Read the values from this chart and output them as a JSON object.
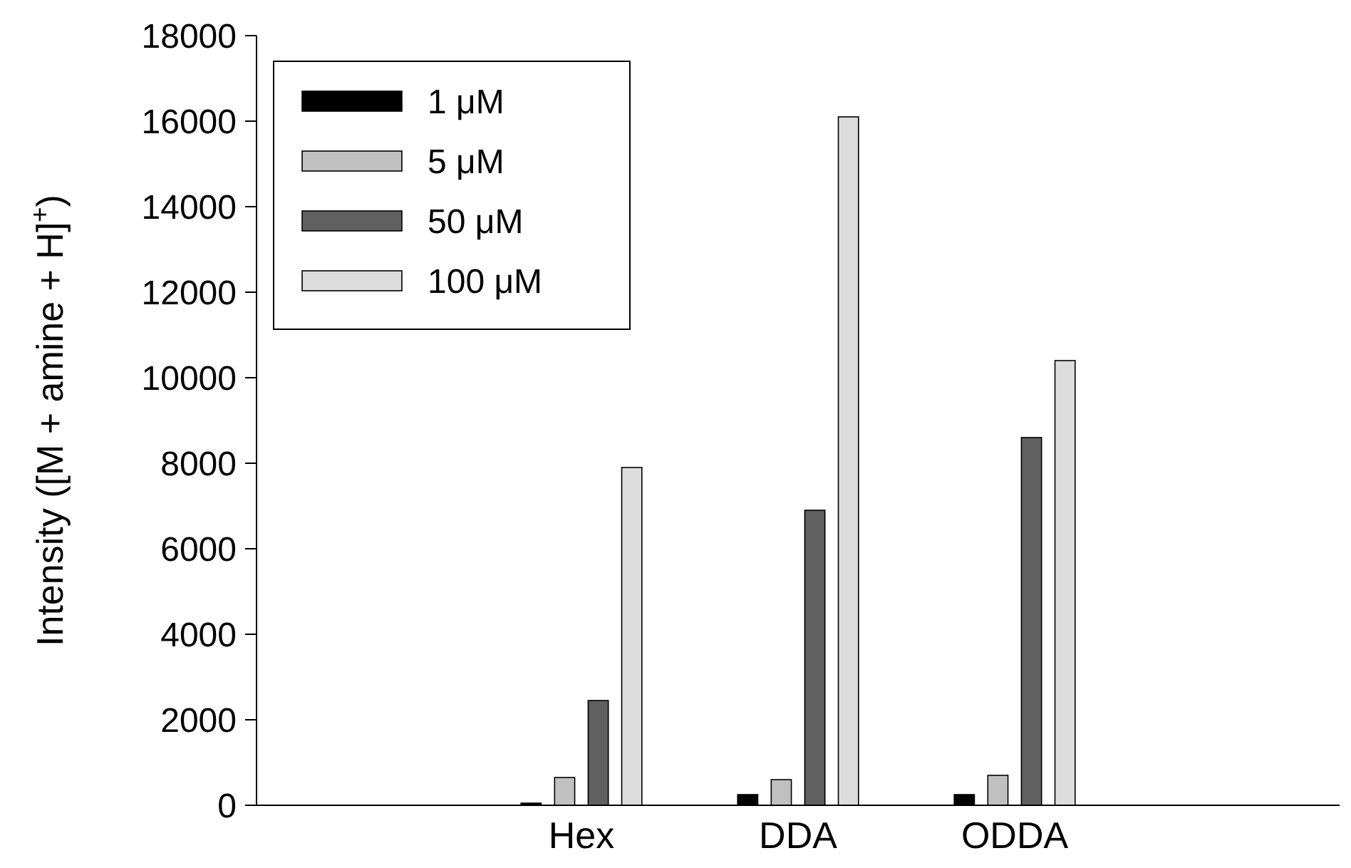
{
  "chart_data": {
    "type": "bar",
    "categories": [
      null,
      "Hex",
      "DDA",
      "ODDA",
      null
    ],
    "ylabel": "Intensity ([M + amine + H]$^{+}$)",
    "ylim": [
      0,
      18000
    ],
    "yticks": [
      0,
      2000,
      4000,
      6000,
      8000,
      10000,
      12000,
      14000,
      16000,
      18000
    ],
    "grid": false,
    "legend": "top left",
    "series": [
      {
        "name": "1 μM",
        "color": "#000000",
        "values": [
          null,
          50,
          250,
          250,
          null
        ]
      },
      {
        "name": "5 μM",
        "color": "#c0c0c0",
        "values": [
          null,
          650,
          600,
          700,
          null
        ]
      },
      {
        "name": "50 μM",
        "color": "#606060",
        "values": [
          null,
          2450,
          6900,
          8600,
          null
        ]
      },
      {
        "name": "100 μM",
        "color": "#dcdcdc",
        "values": [
          null,
          7900,
          16100,
          10400,
          null
        ]
      }
    ]
  }
}
